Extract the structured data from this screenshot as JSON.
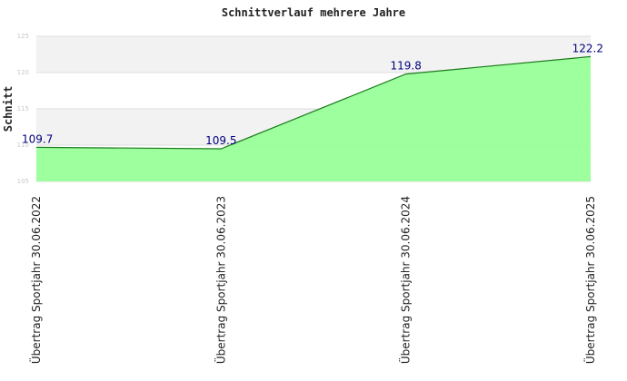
{
  "chart_data": {
    "type": "area",
    "title": "Schnittverlauf mehrere Jahre",
    "xlabel": "",
    "ylabel": "Schnitt",
    "categories": [
      "Übertrag Sportjahr 30.06.2022",
      "Übertrag Sportjahr 30.06.2023",
      "Übertrag Sportjahr 30.06.2024",
      "Übertrag Sportjahr 30.06.2025"
    ],
    "values": [
      109.7,
      109.5,
      119.8,
      122.2
    ],
    "value_labels": [
      "109.7",
      "109.5",
      "119.8",
      "122.2"
    ],
    "ylim": [
      105,
      125
    ],
    "yticks": [
      105,
      110,
      115,
      120,
      125
    ],
    "ytick_labels": [
      "105",
      "110",
      "115",
      "120",
      "125"
    ],
    "grid": true,
    "legend": "none",
    "colors": {
      "fill": "#99ff99",
      "line": "#1a7a1a",
      "band": "#f2f2f2",
      "grid": "#dddddd",
      "value_label": "#000080"
    }
  }
}
